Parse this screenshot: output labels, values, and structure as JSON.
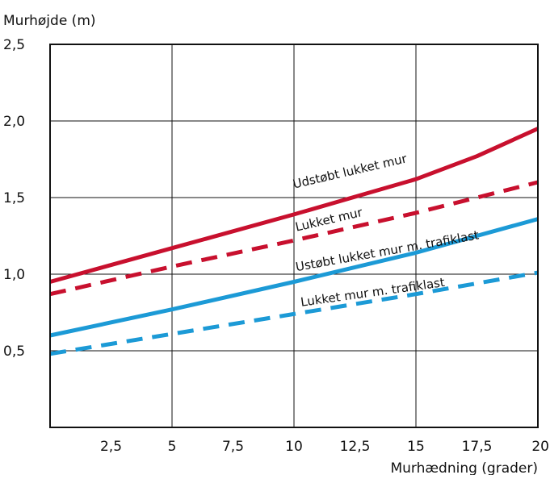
{
  "chart_data": {
    "type": "line",
    "ylabel": "Murhøjde (m)",
    "xlabel": "Murhædning (grader)",
    "xlim": [
      0,
      20
    ],
    "ylim": [
      0,
      2.5
    ],
    "x_ticks": [
      2.5,
      5,
      7.5,
      10,
      12.5,
      15,
      17.5,
      20
    ],
    "x_tick_labels": [
      "2,5",
      "5",
      "7,5",
      "10",
      "12,5",
      "15",
      "17,5",
      "20"
    ],
    "x_gridlines": [
      5,
      10,
      15
    ],
    "y_ticks": [
      0.5,
      1.0,
      1.5,
      2.0,
      2.5
    ],
    "y_tick_labels": [
      "0,5",
      "1,0",
      "1,5",
      "2,0",
      "2,5"
    ],
    "grid": true,
    "series": [
      {
        "name": "Udstøbt lukket mur",
        "color": "#c8102e",
        "dashed": false,
        "x": [
          0,
          5,
          10,
          15,
          17.5,
          20
        ],
        "y": [
          0.95,
          1.17,
          1.39,
          1.62,
          1.77,
          1.95
        ]
      },
      {
        "name": "Lukket mur",
        "color": "#c8102e",
        "dashed": true,
        "x": [
          0,
          5,
          10,
          15,
          20
        ],
        "y": [
          0.87,
          1.05,
          1.22,
          1.4,
          1.6
        ]
      },
      {
        "name": "Ustøbt lukket mur m. trafiklast",
        "color": "#1c9ad6",
        "dashed": false,
        "x": [
          0,
          5,
          10,
          15,
          20
        ],
        "y": [
          0.6,
          0.77,
          0.95,
          1.14,
          1.36
        ]
      },
      {
        "name": "Lukket mur m. trafiklast",
        "color": "#1c9ad6",
        "dashed": true,
        "x": [
          0,
          5,
          10,
          15,
          20
        ],
        "y": [
          0.48,
          0.61,
          0.74,
          0.87,
          1.01
        ]
      }
    ]
  }
}
